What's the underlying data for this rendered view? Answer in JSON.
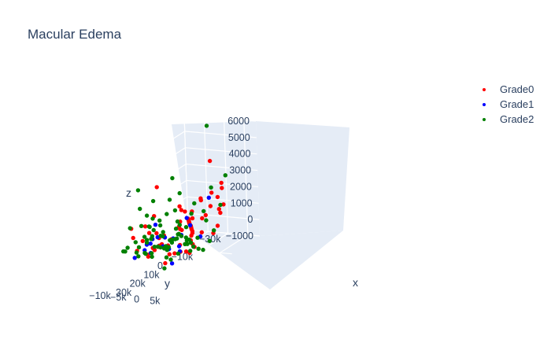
{
  "chart_data": {
    "type": "scatter",
    "title": "Macular Edema",
    "axes": {
      "x": {
        "label": "x",
        "range": [
          -30000,
          30000
        ],
        "tick_labels": [
          "−30k",
          "−10k",
          "0",
          "10k",
          "20k",
          "30k"
        ],
        "ticks": [
          -30000,
          -10000,
          0,
          10000,
          20000,
          30000
        ]
      },
      "y": {
        "label": "y",
        "range": [
          -10000,
          8000
        ],
        "tick_labels": [
          "−10k",
          "−5k",
          "0",
          "5k"
        ],
        "ticks": [
          -10000,
          -5000,
          0,
          5000
        ]
      },
      "z": {
        "label": "z",
        "range": [
          -1000,
          6000
        ],
        "tick_labels": [
          "−1000",
          "0",
          "1000",
          "2000",
          "3000",
          "4000",
          "5000",
          "6000"
        ],
        "ticks": [
          -1000,
          0,
          1000,
          2000,
          3000,
          4000,
          5000,
          6000
        ]
      }
    },
    "legend": {
      "position": "top-right"
    },
    "series": [
      {
        "name": "Grade0",
        "color": "#ff0000",
        "points": [
          [
            -28000,
            -9200,
            -200
          ],
          [
            -27000,
            -8800,
            -150
          ],
          [
            -26000,
            -8400,
            -120
          ],
          [
            -25000,
            -8000,
            -100
          ],
          [
            -24000,
            -7600,
            -80
          ],
          [
            -23000,
            -7200,
            -70
          ],
          [
            -22000,
            -6800,
            -60
          ],
          [
            -21000,
            -6400,
            -40
          ],
          [
            -20000,
            -6000,
            -20
          ],
          [
            -18000,
            -5000,
            0
          ],
          [
            -16000,
            -4200,
            20
          ],
          [
            -14000,
            -3400,
            40
          ],
          [
            -12000,
            -2500,
            50
          ],
          [
            -10000,
            -1800,
            60
          ],
          [
            -7000,
            -1000,
            80
          ],
          [
            -2000,
            600,
            100
          ],
          [
            2000,
            2500,
            120
          ],
          [
            5000,
            4000,
            150
          ],
          [
            -25000,
            -2000,
            1700
          ],
          [
            -24000,
            1000,
            2100
          ],
          [
            -23000,
            -4000,
            1300
          ],
          [
            -21000,
            2000,
            2600
          ],
          [
            -20000,
            -3000,
            1600
          ],
          [
            -19000,
            0,
            4000
          ],
          [
            -18000,
            2000,
            1900
          ],
          [
            -17000,
            -6000,
            900
          ],
          [
            -16000,
            3000,
            1300
          ],
          [
            -15000,
            -1000,
            700
          ],
          [
            -14000,
            4000,
            1200
          ],
          [
            -12000,
            1000,
            1100
          ],
          [
            -11000,
            -2000,
            900
          ],
          [
            -10000,
            3000,
            1800
          ],
          [
            -9000,
            5000,
            700
          ],
          [
            -8000,
            -1000,
            1500
          ],
          [
            -6000,
            2000,
            400
          ],
          [
            -5000,
            -3000,
            1000
          ],
          [
            -3000,
            6000,
            600
          ],
          [
            -8000,
            7000,
            2100
          ],
          [
            5000,
            -5000,
            3600
          ],
          [
            9000,
            2000,
            2800
          ],
          [
            13000,
            -2000,
            1000
          ],
          [
            14000,
            -1000,
            700
          ],
          [
            15000,
            0,
            1300
          ],
          [
            16000,
            1000,
            600
          ],
          [
            17000,
            -3000,
            1500
          ],
          [
            18000,
            2000,
            900
          ],
          [
            19000,
            -4000,
            1100
          ],
          [
            20000,
            3000,
            500
          ],
          [
            21000,
            -2000,
            300
          ],
          [
            22000,
            0,
            800
          ],
          [
            23000,
            1000,
            1900
          ],
          [
            24000,
            -1000,
            600
          ],
          [
            25000,
            2000,
            1200
          ],
          [
            26000,
            -3000,
            900
          ],
          [
            27000,
            3000,
            1400
          ],
          [
            15000,
            4000,
            400
          ],
          [
            12000,
            3000,
            1600
          ],
          [
            14000,
            -5000,
            1700
          ],
          [
            18000,
            5000,
            1000
          ],
          [
            20000,
            -6000,
            1300
          ],
          [
            22000,
            5000,
            700
          ],
          [
            24000,
            -5000,
            2100
          ],
          [
            16000,
            -2000,
            2500
          ],
          [
            19000,
            6000,
            3200
          ],
          [
            10000,
            0,
            800
          ],
          [
            8000,
            2000,
            1300
          ],
          [
            11000,
            4000,
            200
          ],
          [
            21000,
            6000,
            2300
          ],
          [
            26000,
            4000,
            300
          ],
          [
            13000,
            6000,
            900
          ],
          [
            17000,
            7000,
            500
          ],
          [
            12000,
            -4000,
            300
          ]
        ]
      },
      {
        "name": "Grade1",
        "color": "#0000ff",
        "points": [
          [
            -23000,
            -2000,
            1500
          ],
          [
            -12000,
            -3000,
            400
          ],
          [
            -5000,
            2000,
            200
          ],
          [
            0,
            -1000,
            500
          ],
          [
            7000,
            3000,
            2000
          ],
          [
            14000,
            -2000,
            1100
          ],
          [
            16000,
            0,
            700
          ],
          [
            17000,
            3000,
            1300
          ],
          [
            19000,
            -3000,
            900
          ],
          [
            20000,
            2000,
            1500
          ],
          [
            22000,
            -1000,
            600
          ],
          [
            23000,
            4000,
            1000
          ],
          [
            25000,
            -4000,
            400
          ],
          [
            26000,
            1000,
            1700
          ],
          [
            15000,
            -5000,
            300
          ],
          [
            21000,
            6000,
            800
          ],
          [
            24000,
            5000,
            200
          ],
          [
            18000,
            -1000,
            2100
          ],
          [
            13000,
            3000,
            600
          ],
          [
            8000,
            -6000,
            300
          ]
        ]
      },
      {
        "name": "Grade2",
        "color": "#008000",
        "points": [
          [
            -26000,
            -3000,
            5700
          ],
          [
            -24000,
            2000,
            2900
          ],
          [
            -22000,
            -1000,
            2200
          ],
          [
            -21000,
            -5000,
            1200
          ],
          [
            -19000,
            -2000,
            900
          ],
          [
            -17000,
            3000,
            1500
          ],
          [
            -15000,
            0,
            600
          ],
          [
            -13000,
            -6000,
            300
          ],
          [
            -9000,
            4000,
            400
          ],
          [
            -6000,
            -4000,
            150
          ],
          [
            -3000,
            5000,
            100
          ],
          [
            -6000,
            -2000,
            0
          ],
          [
            -1000,
            1000,
            20
          ],
          [
            3000,
            3000,
            40
          ],
          [
            5000,
            5000,
            60
          ],
          [
            6000,
            6500,
            80
          ],
          [
            -4000,
            -500,
            10
          ],
          [
            10000,
            -2000,
            1200
          ],
          [
            11000,
            0,
            800
          ],
          [
            12000,
            2000,
            1600
          ],
          [
            13000,
            -4000,
            900
          ],
          [
            14000,
            4000,
            1300
          ],
          [
            15000,
            -1000,
            2200
          ],
          [
            16000,
            1000,
            500
          ],
          [
            17000,
            -3000,
            1900
          ],
          [
            18000,
            3000,
            1100
          ],
          [
            19000,
            -5000,
            700
          ],
          [
            20000,
            5000,
            1500
          ],
          [
            21000,
            -2000,
            2800
          ],
          [
            22000,
            0,
            1000
          ],
          [
            23000,
            2000,
            2400
          ],
          [
            24000,
            -4000,
            1300
          ],
          [
            25000,
            4000,
            600
          ],
          [
            26000,
            -1000,
            1800
          ],
          [
            27000,
            1000,
            900
          ],
          [
            28000,
            3000,
            1400
          ],
          [
            12000,
            6000,
            2600
          ],
          [
            14000,
            -6000,
            1700
          ],
          [
            16000,
            6000,
            2000
          ],
          [
            18000,
            -6000,
            300
          ],
          [
            20000,
            7000,
            1200
          ],
          [
            22000,
            -6000,
            2000
          ],
          [
            24000,
            6000,
            1700
          ],
          [
            26000,
            -6000,
            800
          ],
          [
            13000,
            1000,
            3400
          ],
          [
            17000,
            5000,
            4100
          ],
          [
            19000,
            -1000,
            3600
          ],
          [
            21000,
            3000,
            3000
          ],
          [
            23000,
            -3000,
            3300
          ],
          [
            15000,
            3000,
            2900
          ],
          [
            25000,
            1000,
            2200
          ],
          [
            11000,
            -5000,
            1500
          ],
          [
            27000,
            -5000,
            1100
          ],
          [
            14000,
            0,
            600
          ],
          [
            16000,
            -4000,
            1000
          ],
          [
            18000,
            1000,
            700
          ],
          [
            20000,
            -3000,
            400
          ],
          [
            22000,
            4000,
            300
          ],
          [
            24000,
            0,
            500
          ],
          [
            26000,
            5000,
            1300
          ],
          [
            28000,
            -2000,
            700
          ],
          [
            12000,
            -1000,
            400
          ],
          [
            10000,
            4000,
            600
          ],
          [
            9000,
            -3000,
            900
          ],
          [
            8000,
            1000,
            1800
          ],
          [
            19000,
            4000,
            5100
          ],
          [
            21000,
            -4000,
            4300
          ],
          [
            17000,
            -2000,
            2400
          ],
          [
            23000,
            5000,
            1600
          ],
          [
            15000,
            -3000,
            1200
          ],
          [
            13000,
            5000,
            1000
          ],
          [
            25000,
            7000,
            900
          ],
          [
            27000,
            4000,
            2000
          ],
          [
            11000,
            7000,
            1100
          ],
          [
            29000,
            0,
            1000
          ],
          [
            29500,
            5000,
            200
          ],
          [
            10500,
            -6000,
            500
          ],
          [
            16500,
            7000,
            600
          ],
          [
            24500,
            -7000,
            700
          ],
          [
            20500,
            1000,
            900
          ],
          [
            18500,
            5000,
            1700
          ]
        ]
      }
    ]
  }
}
